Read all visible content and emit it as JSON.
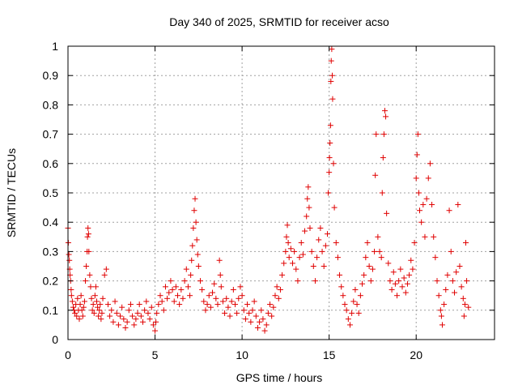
{
  "chart_data": {
    "type": "scatter",
    "title": "Day 340 of 2025, SRMTID for receiver acso",
    "xlabel": "GPS time / hours",
    "ylabel": "SRMTID / TECUs",
    "xlim": [
      0,
      24.5
    ],
    "ylim": [
      0,
      1
    ],
    "x_ticks": [
      0,
      5,
      10,
      15,
      20
    ],
    "x_tick_labels": [
      "0",
      "5",
      "10",
      "15",
      "20"
    ],
    "y_ticks": [
      0,
      0.1,
      0.2,
      0.3,
      0.4,
      0.5,
      0.6,
      0.7,
      0.8,
      0.9,
      1
    ],
    "y_tick_labels": [
      "0",
      "0.1",
      "0.2",
      "0.3",
      "0.4",
      "0.5",
      "0.6",
      "0.7",
      "0.8",
      "0.9",
      "1"
    ],
    "grid": true,
    "marker": "+",
    "color": "#e00000",
    "series": [
      {
        "name": "acso",
        "points": [
          [
            0.0,
            0.38
          ],
          [
            0.02,
            0.33
          ],
          [
            0.05,
            0.29
          ],
          [
            0.08,
            0.27
          ],
          [
            0.1,
            0.24
          ],
          [
            0.12,
            0.22
          ],
          [
            0.15,
            0.2
          ],
          [
            0.18,
            0.17
          ],
          [
            0.2,
            0.15
          ],
          [
            0.25,
            0.13
          ],
          [
            0.3,
            0.11
          ],
          [
            0.35,
            0.1
          ],
          [
            0.4,
            0.09
          ],
          [
            0.45,
            0.12
          ],
          [
            0.5,
            0.08
          ],
          [
            0.55,
            0.14
          ],
          [
            0.6,
            0.1
          ],
          [
            0.65,
            0.07
          ],
          [
            0.7,
            0.12
          ],
          [
            0.75,
            0.15
          ],
          [
            0.8,
            0.1
          ],
          [
            0.85,
            0.08
          ],
          [
            0.9,
            0.11
          ],
          [
            0.95,
            0.13
          ],
          [
            1.0,
            0.2
          ],
          [
            1.05,
            0.25
          ],
          [
            1.1,
            0.3
          ],
          [
            1.12,
            0.35
          ],
          [
            1.15,
            0.38
          ],
          [
            1.18,
            0.36
          ],
          [
            1.2,
            0.3
          ],
          [
            1.25,
            0.22
          ],
          [
            1.3,
            0.18
          ],
          [
            1.35,
            0.14
          ],
          [
            1.4,
            0.1
          ],
          [
            1.45,
            0.12
          ],
          [
            1.5,
            0.09
          ],
          [
            1.55,
            0.15
          ],
          [
            1.6,
            0.18
          ],
          [
            1.65,
            0.13
          ],
          [
            1.7,
            0.11
          ],
          [
            1.75,
            0.08
          ],
          [
            1.8,
            0.1
          ],
          [
            1.85,
            0.12
          ],
          [
            1.9,
            0.07
          ],
          [
            1.95,
            0.09
          ],
          [
            2.0,
            0.14
          ],
          [
            2.1,
            0.22
          ],
          [
            2.2,
            0.24
          ],
          [
            2.3,
            0.12
          ],
          [
            2.4,
            0.08
          ],
          [
            2.5,
            0.1
          ],
          [
            2.6,
            0.06
          ],
          [
            2.7,
            0.13
          ],
          [
            2.8,
            0.09
          ],
          [
            2.9,
            0.05
          ],
          [
            3.0,
            0.08
          ],
          [
            3.1,
            0.11
          ],
          [
            3.2,
            0.07
          ],
          [
            3.3,
            0.04
          ],
          [
            3.4,
            0.06
          ],
          [
            3.5,
            0.1
          ],
          [
            3.6,
            0.12
          ],
          [
            3.7,
            0.08
          ],
          [
            3.8,
            0.05
          ],
          [
            3.9,
            0.07
          ],
          [
            4.0,
            0.09
          ],
          [
            4.1,
            0.12
          ],
          [
            4.2,
            0.08
          ],
          [
            4.3,
            0.06
          ],
          [
            4.4,
            0.1
          ],
          [
            4.5,
            0.13
          ],
          [
            4.6,
            0.09
          ],
          [
            4.7,
            0.07
          ],
          [
            4.8,
            0.11
          ],
          [
            4.9,
            0.05
          ],
          [
            5.0,
            0.03
          ],
          [
            5.05,
            0.06
          ],
          [
            5.1,
            0.09
          ],
          [
            5.2,
            0.12
          ],
          [
            5.3,
            0.15
          ],
          [
            5.4,
            0.13
          ],
          [
            5.5,
            0.1
          ],
          [
            5.6,
            0.18
          ],
          [
            5.7,
            0.14
          ],
          [
            5.8,
            0.16
          ],
          [
            5.9,
            0.2
          ],
          [
            6.0,
            0.17
          ],
          [
            6.1,
            0.13
          ],
          [
            6.2,
            0.18
          ],
          [
            6.3,
            0.15
          ],
          [
            6.4,
            0.12
          ],
          [
            6.5,
            0.17
          ],
          [
            6.6,
            0.14
          ],
          [
            6.7,
            0.2
          ],
          [
            6.8,
            0.24
          ],
          [
            6.9,
            0.18
          ],
          [
            7.0,
            0.15
          ],
          [
            7.05,
            0.22
          ],
          [
            7.1,
            0.27
          ],
          [
            7.15,
            0.32
          ],
          [
            7.2,
            0.38
          ],
          [
            7.25,
            0.44
          ],
          [
            7.3,
            0.48
          ],
          [
            7.35,
            0.4
          ],
          [
            7.4,
            0.34
          ],
          [
            7.45,
            0.29
          ],
          [
            7.5,
            0.25
          ],
          [
            7.6,
            0.2
          ],
          [
            7.7,
            0.17
          ],
          [
            7.8,
            0.13
          ],
          [
            7.9,
            0.1
          ],
          [
            8.0,
            0.12
          ],
          [
            8.1,
            0.15
          ],
          [
            8.2,
            0.11
          ],
          [
            8.3,
            0.16
          ],
          [
            8.4,
            0.19
          ],
          [
            8.5,
            0.14
          ],
          [
            8.6,
            0.12
          ],
          [
            8.7,
            0.27
          ],
          [
            8.75,
            0.22
          ],
          [
            8.8,
            0.18
          ],
          [
            8.9,
            0.13
          ],
          [
            9.0,
            0.09
          ],
          [
            9.1,
            0.14
          ],
          [
            9.2,
            0.11
          ],
          [
            9.3,
            0.08
          ],
          [
            9.4,
            0.13
          ],
          [
            9.5,
            0.17
          ],
          [
            9.6,
            0.12
          ],
          [
            9.7,
            0.09
          ],
          [
            9.8,
            0.14
          ],
          [
            9.9,
            0.18
          ],
          [
            10.0,
            0.15
          ],
          [
            10.1,
            0.1
          ],
          [
            10.2,
            0.07
          ],
          [
            10.3,
            0.12
          ],
          [
            10.4,
            0.09
          ],
          [
            10.5,
            0.06
          ],
          [
            10.6,
            0.1
          ],
          [
            10.7,
            0.13
          ],
          [
            10.8,
            0.08
          ],
          [
            10.9,
            0.04
          ],
          [
            11.0,
            0.06
          ],
          [
            11.1,
            0.1
          ],
          [
            11.2,
            0.07
          ],
          [
            11.3,
            0.03
          ],
          [
            11.4,
            0.05
          ],
          [
            11.5,
            0.09
          ],
          [
            11.6,
            0.12
          ],
          [
            11.7,
            0.08
          ],
          [
            11.8,
            0.11
          ],
          [
            11.9,
            0.15
          ],
          [
            12.0,
            0.18
          ],
          [
            12.1,
            0.14
          ],
          [
            12.2,
            0.17
          ],
          [
            12.3,
            0.22
          ],
          [
            12.4,
            0.26
          ],
          [
            12.5,
            0.3
          ],
          [
            12.55,
            0.35
          ],
          [
            12.6,
            0.39
          ],
          [
            12.65,
            0.33
          ],
          [
            12.7,
            0.28
          ],
          [
            12.8,
            0.31
          ],
          [
            12.9,
            0.26
          ],
          [
            13.0,
            0.3
          ],
          [
            13.1,
            0.24
          ],
          [
            13.2,
            0.2
          ],
          [
            13.3,
            0.28
          ],
          [
            13.4,
            0.33
          ],
          [
            13.5,
            0.29
          ],
          [
            13.6,
            0.37
          ],
          [
            13.7,
            0.42
          ],
          [
            13.75,
            0.48
          ],
          [
            13.8,
            0.52
          ],
          [
            13.85,
            0.45
          ],
          [
            13.9,
            0.38
          ],
          [
            14.0,
            0.3
          ],
          [
            14.1,
            0.25
          ],
          [
            14.2,
            0.2
          ],
          [
            14.3,
            0.28
          ],
          [
            14.4,
            0.34
          ],
          [
            14.5,
            0.38
          ],
          [
            14.6,
            0.3
          ],
          [
            14.7,
            0.25
          ],
          [
            14.8,
            0.32
          ],
          [
            14.9,
            0.36
          ],
          [
            14.95,
            0.5
          ],
          [
            15.0,
            0.57
          ],
          [
            15.02,
            0.62
          ],
          [
            15.05,
            0.67
          ],
          [
            15.08,
            0.73
          ],
          [
            15.1,
            0.88
          ],
          [
            15.12,
            0.95
          ],
          [
            15.15,
            0.99
          ],
          [
            15.18,
            0.9
          ],
          [
            15.2,
            0.82
          ],
          [
            15.25,
            0.6
          ],
          [
            15.3,
            0.45
          ],
          [
            15.4,
            0.33
          ],
          [
            15.5,
            0.28
          ],
          [
            15.6,
            0.22
          ],
          [
            15.7,
            0.18
          ],
          [
            15.8,
            0.15
          ],
          [
            15.9,
            0.12
          ],
          [
            16.0,
            0.1
          ],
          [
            16.1,
            0.07
          ],
          [
            16.2,
            0.05
          ],
          [
            16.3,
            0.09
          ],
          [
            16.4,
            0.13
          ],
          [
            16.5,
            0.17
          ],
          [
            16.6,
            0.12
          ],
          [
            16.7,
            0.09
          ],
          [
            16.8,
            0.15
          ],
          [
            16.9,
            0.19
          ],
          [
            17.0,
            0.22
          ],
          [
            17.1,
            0.28
          ],
          [
            17.2,
            0.33
          ],
          [
            17.3,
            0.25
          ],
          [
            17.4,
            0.2
          ],
          [
            17.5,
            0.24
          ],
          [
            17.6,
            0.3
          ],
          [
            17.65,
            0.56
          ],
          [
            17.7,
            0.7
          ],
          [
            17.8,
            0.35
          ],
          [
            17.9,
            0.3
          ],
          [
            18.0,
            0.28
          ],
          [
            18.05,
            0.5
          ],
          [
            18.1,
            0.62
          ],
          [
            18.15,
            0.7
          ],
          [
            18.2,
            0.78
          ],
          [
            18.25,
            0.76
          ],
          [
            18.3,
            0.43
          ],
          [
            18.4,
            0.26
          ],
          [
            18.5,
            0.2
          ],
          [
            18.6,
            0.17
          ],
          [
            18.7,
            0.23
          ],
          [
            18.8,
            0.19
          ],
          [
            18.9,
            0.15
          ],
          [
            19.0,
            0.2
          ],
          [
            19.1,
            0.24
          ],
          [
            19.2,
            0.18
          ],
          [
            19.3,
            0.21
          ],
          [
            19.4,
            0.16
          ],
          [
            19.5,
            0.19
          ],
          [
            19.6,
            0.22
          ],
          [
            19.7,
            0.27
          ],
          [
            19.8,
            0.24
          ],
          [
            19.9,
            0.33
          ],
          [
            20.0,
            0.55
          ],
          [
            20.05,
            0.63
          ],
          [
            20.1,
            0.7
          ],
          [
            20.15,
            0.5
          ],
          [
            20.2,
            0.44
          ],
          [
            20.3,
            0.4
          ],
          [
            20.4,
            0.46
          ],
          [
            20.5,
            0.35
          ],
          [
            20.6,
            0.48
          ],
          [
            20.7,
            0.55
          ],
          [
            20.8,
            0.6
          ],
          [
            20.9,
            0.46
          ],
          [
            21.0,
            0.35
          ],
          [
            21.1,
            0.28
          ],
          [
            21.2,
            0.2
          ],
          [
            21.3,
            0.15
          ],
          [
            21.4,
            0.1
          ],
          [
            21.45,
            0.08
          ],
          [
            21.5,
            0.05
          ],
          [
            21.6,
            0.12
          ],
          [
            21.7,
            0.17
          ],
          [
            21.8,
            0.22
          ],
          [
            21.9,
            0.44
          ],
          [
            22.0,
            0.3
          ],
          [
            22.1,
            0.2
          ],
          [
            22.2,
            0.16
          ],
          [
            22.3,
            0.23
          ],
          [
            22.4,
            0.46
          ],
          [
            22.5,
            0.25
          ],
          [
            22.6,
            0.18
          ],
          [
            22.7,
            0.14
          ],
          [
            22.75,
            0.08
          ],
          [
            22.8,
            0.12
          ],
          [
            22.85,
            0.33
          ],
          [
            22.9,
            0.2
          ],
          [
            23.0,
            0.11
          ]
        ]
      }
    ]
  }
}
